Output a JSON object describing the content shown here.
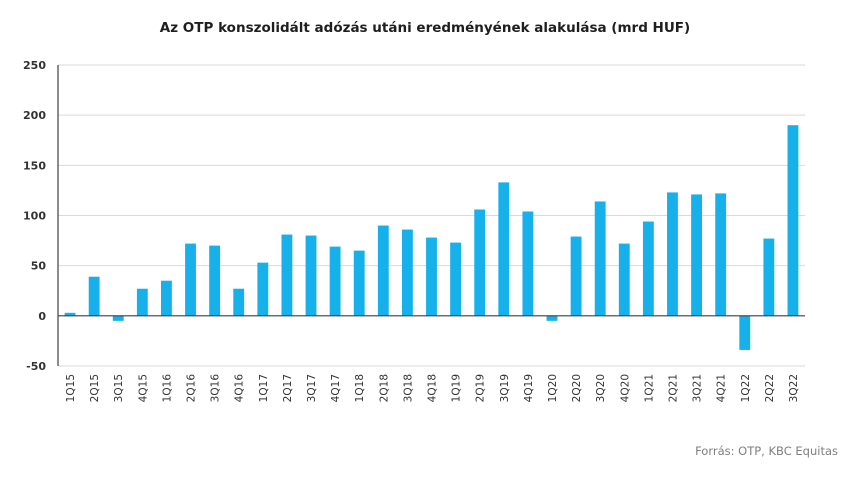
{
  "chart_data": {
    "type": "bar",
    "title": "Az OTP konszolidált adózás utáni eredményének  alakulása (mrd HUF)",
    "xlabel": "",
    "ylabel": "",
    "ylim": [
      -50,
      250
    ],
    "yticks": [
      250,
      200,
      150,
      100,
      50,
      0,
      -50
    ],
    "grid": true,
    "categories": [
      "1Q15",
      "2Q15",
      "3Q15",
      "4Q15",
      "1Q16",
      "2Q16",
      "3Q16",
      "4Q16",
      "1Q17",
      "2Q17",
      "3Q17",
      "4Q17",
      "1Q18",
      "2Q18",
      "3Q18",
      "4Q18",
      "1Q19",
      "2Q19",
      "3Q19",
      "4Q19",
      "1Q20",
      "2Q20",
      "3Q20",
      "4Q20",
      "1Q21",
      "2Q21",
      "3Q21",
      "4Q21",
      "1Q22",
      "2Q22",
      "3Q22"
    ],
    "values": [
      3,
      39,
      -5,
      27,
      35,
      72,
      70,
      27,
      53,
      81,
      80,
      69,
      65,
      90,
      86,
      78,
      73,
      106,
      133,
      104,
      -5,
      79,
      114,
      72,
      94,
      123,
      121,
      122,
      -34,
      77,
      190
    ],
    "bar_color": "#16b0ea",
    "source": "Forrás: OTP, KBC Equitas"
  }
}
